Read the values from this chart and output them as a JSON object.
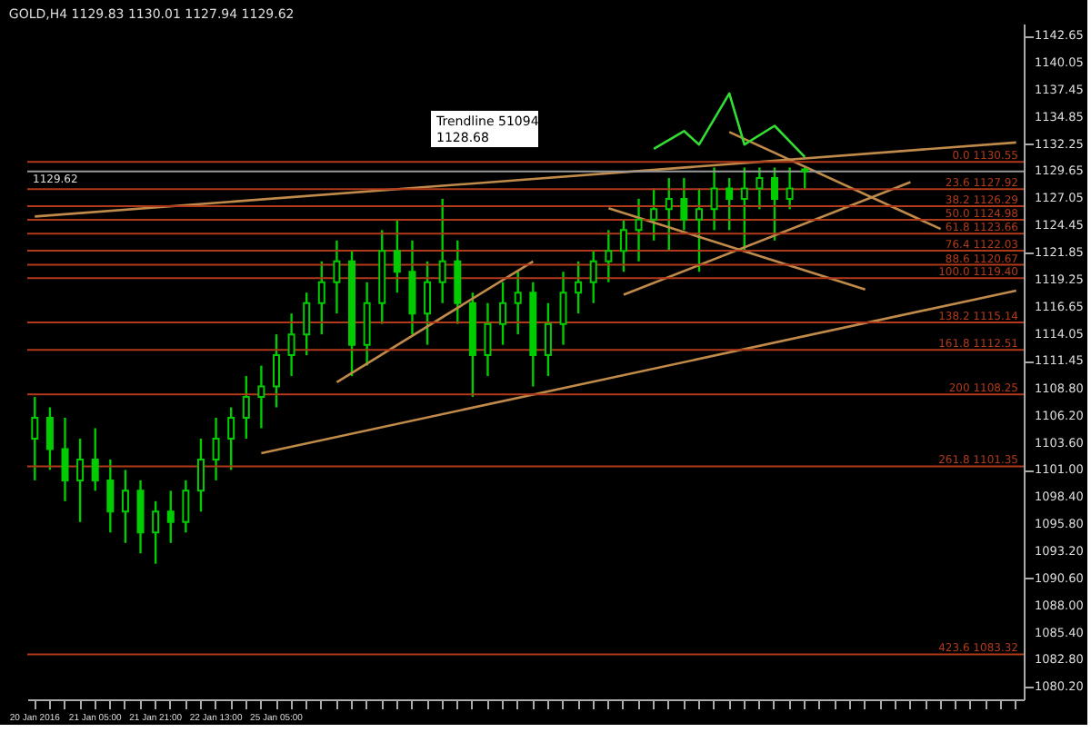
{
  "chart_data": {
    "type": "candlestick",
    "title": "GOLD,H4  1129.83 1130.01 1127.94 1129.62",
    "categories": [
      "20 Jan 2016",
      null,
      null,
      null,
      "21 Jan 05:00",
      null,
      null,
      null,
      "21 Jan 21:00",
      null,
      null,
      null,
      "22 Jan 13:00",
      null,
      null,
      null,
      "25 Jan 05:00",
      null,
      null,
      null,
      null,
      null,
      null,
      null,
      null,
      null,
      null,
      null,
      null,
      null,
      null,
      null,
      null,
      null,
      null,
      null,
      null,
      null,
      null,
      null,
      null,
      null,
      null,
      null,
      null,
      null,
      null,
      null,
      null,
      null,
      null,
      null,
      null,
      null,
      null,
      null,
      null,
      null,
      null,
      null,
      null,
      null,
      null,
      null,
      null,
      null
    ],
    "ohlc": [
      [
        1104,
        1108,
        1100,
        1106
      ],
      [
        1106,
        1107,
        1101,
        1103
      ],
      [
        1103,
        1106,
        1098,
        1100
      ],
      [
        1100,
        1104,
        1096,
        1102
      ],
      [
        1102,
        1105,
        1099,
        1100
      ],
      [
        1100,
        1102,
        1095,
        1097
      ],
      [
        1097,
        1101,
        1094,
        1099
      ],
      [
        1099,
        1100,
        1093,
        1095
      ],
      [
        1095,
        1098,
        1092,
        1097
      ],
      [
        1097,
        1099,
        1094,
        1096
      ],
      [
        1096,
        1100,
        1095,
        1099
      ],
      [
        1099,
        1104,
        1097,
        1102
      ],
      [
        1102,
        1106,
        1100,
        1104
      ],
      [
        1104,
        1107,
        1101,
        1106
      ],
      [
        1106,
        1110,
        1104,
        1108
      ],
      [
        1108,
        1111,
        1105,
        1109
      ],
      [
        1109,
        1114,
        1107,
        1112
      ],
      [
        1112,
        1116,
        1110,
        1114
      ],
      [
        1114,
        1118,
        1112,
        1117
      ],
      [
        1117,
        1121,
        1114,
        1119
      ],
      [
        1119,
        1123,
        1116,
        1121
      ],
      [
        1121,
        1122,
        1110,
        1113
      ],
      [
        1113,
        1119,
        1111,
        1117
      ],
      [
        1117,
        1124,
        1115,
        1122
      ],
      [
        1122,
        1125,
        1118,
        1120
      ],
      [
        1120,
        1123,
        1114,
        1116
      ],
      [
        1116,
        1121,
        1113,
        1119
      ],
      [
        1119,
        1127,
        1117,
        1121
      ],
      [
        1121,
        1123,
        1115,
        1117
      ],
      [
        1117,
        1118,
        1108,
        1112
      ],
      [
        1112,
        1117,
        1110,
        1115
      ],
      [
        1115,
        1119,
        1113,
        1117
      ],
      [
        1117,
        1120,
        1114,
        1118
      ],
      [
        1118,
        1119,
        1109,
        1112
      ],
      [
        1112,
        1117,
        1110,
        1115
      ],
      [
        1115,
        1120,
        1113,
        1118
      ],
      [
        1118,
        1121,
        1116,
        1119
      ],
      [
        1119,
        1122,
        1117,
        1121
      ],
      [
        1121,
        1124,
        1119,
        1122
      ],
      [
        1122,
        1125,
        1120,
        1124
      ],
      [
        1124,
        1127,
        1121,
        1125
      ],
      [
        1125,
        1128,
        1123,
        1126
      ],
      [
        1126,
        1129,
        1122,
        1127
      ],
      [
        1127,
        1129,
        1124,
        1125
      ],
      [
        1125,
        1128,
        1120,
        1126
      ],
      [
        1126,
        1130,
        1124,
        1128
      ],
      [
        1128,
        1129,
        1124,
        1127
      ],
      [
        1127,
        1130,
        1122,
        1128
      ],
      [
        1128,
        1130,
        1126,
        1129
      ],
      [
        1129,
        1130,
        1123,
        1127
      ],
      [
        1127,
        1130,
        1126,
        1128
      ],
      [
        1129.83,
        1130.01,
        1127.94,
        1129.62
      ],
      null,
      null,
      null,
      null,
      null,
      null,
      null,
      null,
      null,
      null,
      null,
      null,
      null,
      null
    ],
    "color": "#00cc00",
    "series": [
      {
        "type": "line",
        "color": "#c08a4a",
        "values": [
          1125.3,
          null,
          null,
          null,
          null,
          null,
          null,
          null,
          null,
          null,
          null,
          null,
          null,
          null,
          null,
          null,
          null,
          null,
          null,
          null,
          null,
          null,
          null,
          null,
          null,
          null,
          null,
          null,
          null,
          null,
          null,
          null,
          null,
          null,
          null,
          null,
          null,
          null,
          null,
          null,
          null,
          null,
          null,
          null,
          null,
          null,
          null,
          null,
          null,
          null,
          null,
          null,
          null,
          null,
          null,
          null,
          null,
          null,
          null,
          null,
          null,
          null,
          null,
          null,
          null,
          1132.4
        ]
      },
      {
        "type": "line",
        "color": "#c08a4a",
        "values": [
          null,
          null,
          null,
          null,
          null,
          null,
          null,
          null,
          null,
          null,
          null,
          null,
          null,
          null,
          null,
          1102.6,
          null,
          null,
          null,
          null,
          null,
          null,
          null,
          null,
          null,
          null,
          null,
          null,
          null,
          null,
          null,
          null,
          null,
          null,
          null,
          null,
          null,
          null,
          null,
          null,
          null,
          null,
          null,
          null,
          null,
          null,
          null,
          null,
          null,
          null,
          null,
          null,
          null,
          null,
          null,
          null,
          null,
          null,
          null,
          null,
          null,
          null,
          null,
          null,
          null,
          1118.2
        ]
      },
      {
        "type": "line",
        "color": "#c08a4a",
        "values": [
          null,
          null,
          null,
          null,
          null,
          null,
          null,
          null,
          null,
          null,
          null,
          null,
          null,
          null,
          null,
          null,
          null,
          null,
          null,
          null,
          1109.4,
          null,
          null,
          null,
          null,
          null,
          null,
          null,
          null,
          null,
          null,
          null,
          null,
          1121.0,
          null,
          null,
          null,
          null,
          null,
          null,
          null,
          null,
          null,
          null,
          null,
          null,
          null,
          null,
          null,
          null,
          null,
          null,
          null,
          null,
          null,
          null,
          null,
          null,
          null,
          null,
          null,
          null,
          null,
          null,
          null,
          null
        ]
      },
      {
        "type": "line",
        "color": "#c08a4a",
        "values": [
          null,
          null,
          null,
          null,
          null,
          null,
          null,
          null,
          null,
          null,
          null,
          null,
          null,
          null,
          null,
          null,
          null,
          null,
          null,
          null,
          null,
          null,
          null,
          null,
          null,
          null,
          null,
          null,
          null,
          null,
          null,
          null,
          null,
          null,
          null,
          null,
          null,
          null,
          1126.1,
          null,
          null,
          null,
          null,
          null,
          null,
          null,
          null,
          null,
          null,
          null,
          null,
          null,
          null,
          null,
          null,
          1118.3,
          null,
          null,
          null,
          null,
          null,
          null,
          null,
          null,
          null,
          null
        ]
      },
      {
        "type": "line",
        "color": "#c08a4a",
        "values": [
          null,
          null,
          null,
          null,
          null,
          null,
          null,
          null,
          null,
          null,
          null,
          null,
          null,
          null,
          null,
          null,
          null,
          null,
          null,
          null,
          null,
          null,
          null,
          null,
          null,
          null,
          null,
          null,
          null,
          null,
          null,
          null,
          null,
          null,
          null,
          null,
          null,
          null,
          null,
          null,
          null,
          null,
          null,
          null,
          null,
          null,
          1133.4,
          null,
          null,
          null,
          null,
          null,
          null,
          null,
          null,
          null,
          null,
          null,
          null,
          null,
          1124.1,
          null,
          null,
          null,
          null,
          null
        ]
      },
      {
        "type": "line",
        "color": "#c08a4a",
        "values": [
          null,
          null,
          null,
          null,
          null,
          null,
          null,
          null,
          null,
          null,
          null,
          null,
          null,
          null,
          null,
          null,
          null,
          null,
          null,
          null,
          null,
          null,
          null,
          null,
          null,
          null,
          null,
          null,
          null,
          null,
          null,
          null,
          null,
          null,
          null,
          null,
          null,
          null,
          null,
          1117.8,
          null,
          null,
          null,
          null,
          null,
          null,
          null,
          null,
          null,
          null,
          null,
          null,
          null,
          null,
          null,
          null,
          null,
          null,
          1128.6,
          null,
          null,
          null,
          null,
          null,
          null,
          null
        ]
      },
      {
        "type": "line",
        "color": "#33dd33",
        "values": [
          null,
          null,
          null,
          null,
          null,
          null,
          null,
          null,
          null,
          null,
          null,
          null,
          null,
          null,
          null,
          null,
          null,
          null,
          null,
          null,
          null,
          null,
          null,
          null,
          null,
          null,
          null,
          null,
          null,
          null,
          null,
          null,
          null,
          null,
          null,
          null,
          null,
          null,
          null,
          null,
          null,
          1131.8,
          null,
          1133.5,
          1132.2,
          null,
          1137.1,
          1132.2,
          null,
          1134.0,
          null,
          1131.0,
          null,
          null,
          null,
          null,
          null,
          null,
          null,
          null,
          null,
          null,
          null,
          null,
          null,
          null
        ]
      }
    ],
    "ylim": [
      1079.0,
      1143.8
    ],
    "yticks": [
      {
        "value": 1142.65,
        "label": "1142.65"
      },
      {
        "value": 1140.05,
        "label": "1140.05"
      },
      {
        "value": 1137.45,
        "label": "1137.45"
      },
      {
        "value": 1134.85,
        "label": "1134.85"
      },
      {
        "value": 1132.25,
        "label": "1132.25"
      },
      {
        "value": 1129.65,
        "label": "1129.65"
      },
      {
        "value": 1127.05,
        "label": "1127.05"
      },
      {
        "value": 1124.45,
        "label": "1124.45"
      },
      {
        "value": 1121.85,
        "label": "1121.85"
      },
      {
        "value": 1119.25,
        "label": "1119.25"
      },
      {
        "value": 1116.65,
        "label": "1116.65"
      },
      {
        "value": 1114.05,
        "label": "1114.05"
      },
      {
        "value": 1111.45,
        "label": "1111.45"
      },
      {
        "value": 1108.8,
        "label": "1108.80"
      },
      {
        "value": 1106.2,
        "label": "1106.20"
      },
      {
        "value": 1103.6,
        "label": "1103.60"
      },
      {
        "value": 1101.0,
        "label": "1101.00"
      },
      {
        "value": 1098.4,
        "label": "1098.40"
      },
      {
        "value": 1095.8,
        "label": "1095.80"
      },
      {
        "value": 1093.2,
        "label": "1093.20"
      },
      {
        "value": 1090.6,
        "label": "1090.60"
      },
      {
        "value": 1088.0,
        "label": "1088.00"
      },
      {
        "value": 1085.4,
        "label": "1085.40"
      },
      {
        "value": 1082.8,
        "label": "1082.80"
      },
      {
        "value": 1080.2,
        "label": "1080.20"
      }
    ],
    "ref_lines": [
      {
        "axis": "y",
        "value": 1129.62,
        "label": "1129.62",
        "color": "#9a9a9a"
      },
      {
        "axis": "y",
        "value": 1130.55,
        "label": "0.0  1130.55",
        "color": "#b03a1a"
      },
      {
        "axis": "y",
        "value": 1127.92,
        "label": "23.6  1127.92",
        "color": "#b03a1a"
      },
      {
        "axis": "y",
        "value": 1126.29,
        "label": "38.2  1126.29",
        "color": "#b03a1a"
      },
      {
        "axis": "y",
        "value": 1124.98,
        "label": "50.0  1124.98",
        "color": "#b03a1a"
      },
      {
        "axis": "y",
        "value": 1123.66,
        "label": "61.8  1123.66",
        "color": "#b03a1a"
      },
      {
        "axis": "y",
        "value": 1122.03,
        "label": "76.4  1122.03",
        "color": "#b03a1a"
      },
      {
        "axis": "y",
        "value": 1120.67,
        "label": "88.6  1120.67",
        "color": "#b03a1a"
      },
      {
        "axis": "y",
        "value": 1119.4,
        "label": "100.0  1119.40",
        "color": "#b03a1a"
      },
      {
        "axis": "y",
        "value": 1115.14,
        "label": "138.2  1115.14",
        "color": "#b03a1a"
      },
      {
        "axis": "y",
        "value": 1112.51,
        "label": "161.8  1112.51",
        "color": "#b03a1a"
      },
      {
        "axis": "y",
        "value": 1108.25,
        "label": "200  1108.25",
        "color": "#b03a1a"
      },
      {
        "axis": "y",
        "value": 1101.35,
        "label": "261.8  1101.35",
        "color": "#b03a1a"
      },
      {
        "axis": "y",
        "value": 1083.32,
        "label": "423.6  1083.32",
        "color": "#b03a1a"
      }
    ],
    "annotations": [
      "Trendline 51094",
      "1128.68"
    ],
    "grid": false
  }
}
